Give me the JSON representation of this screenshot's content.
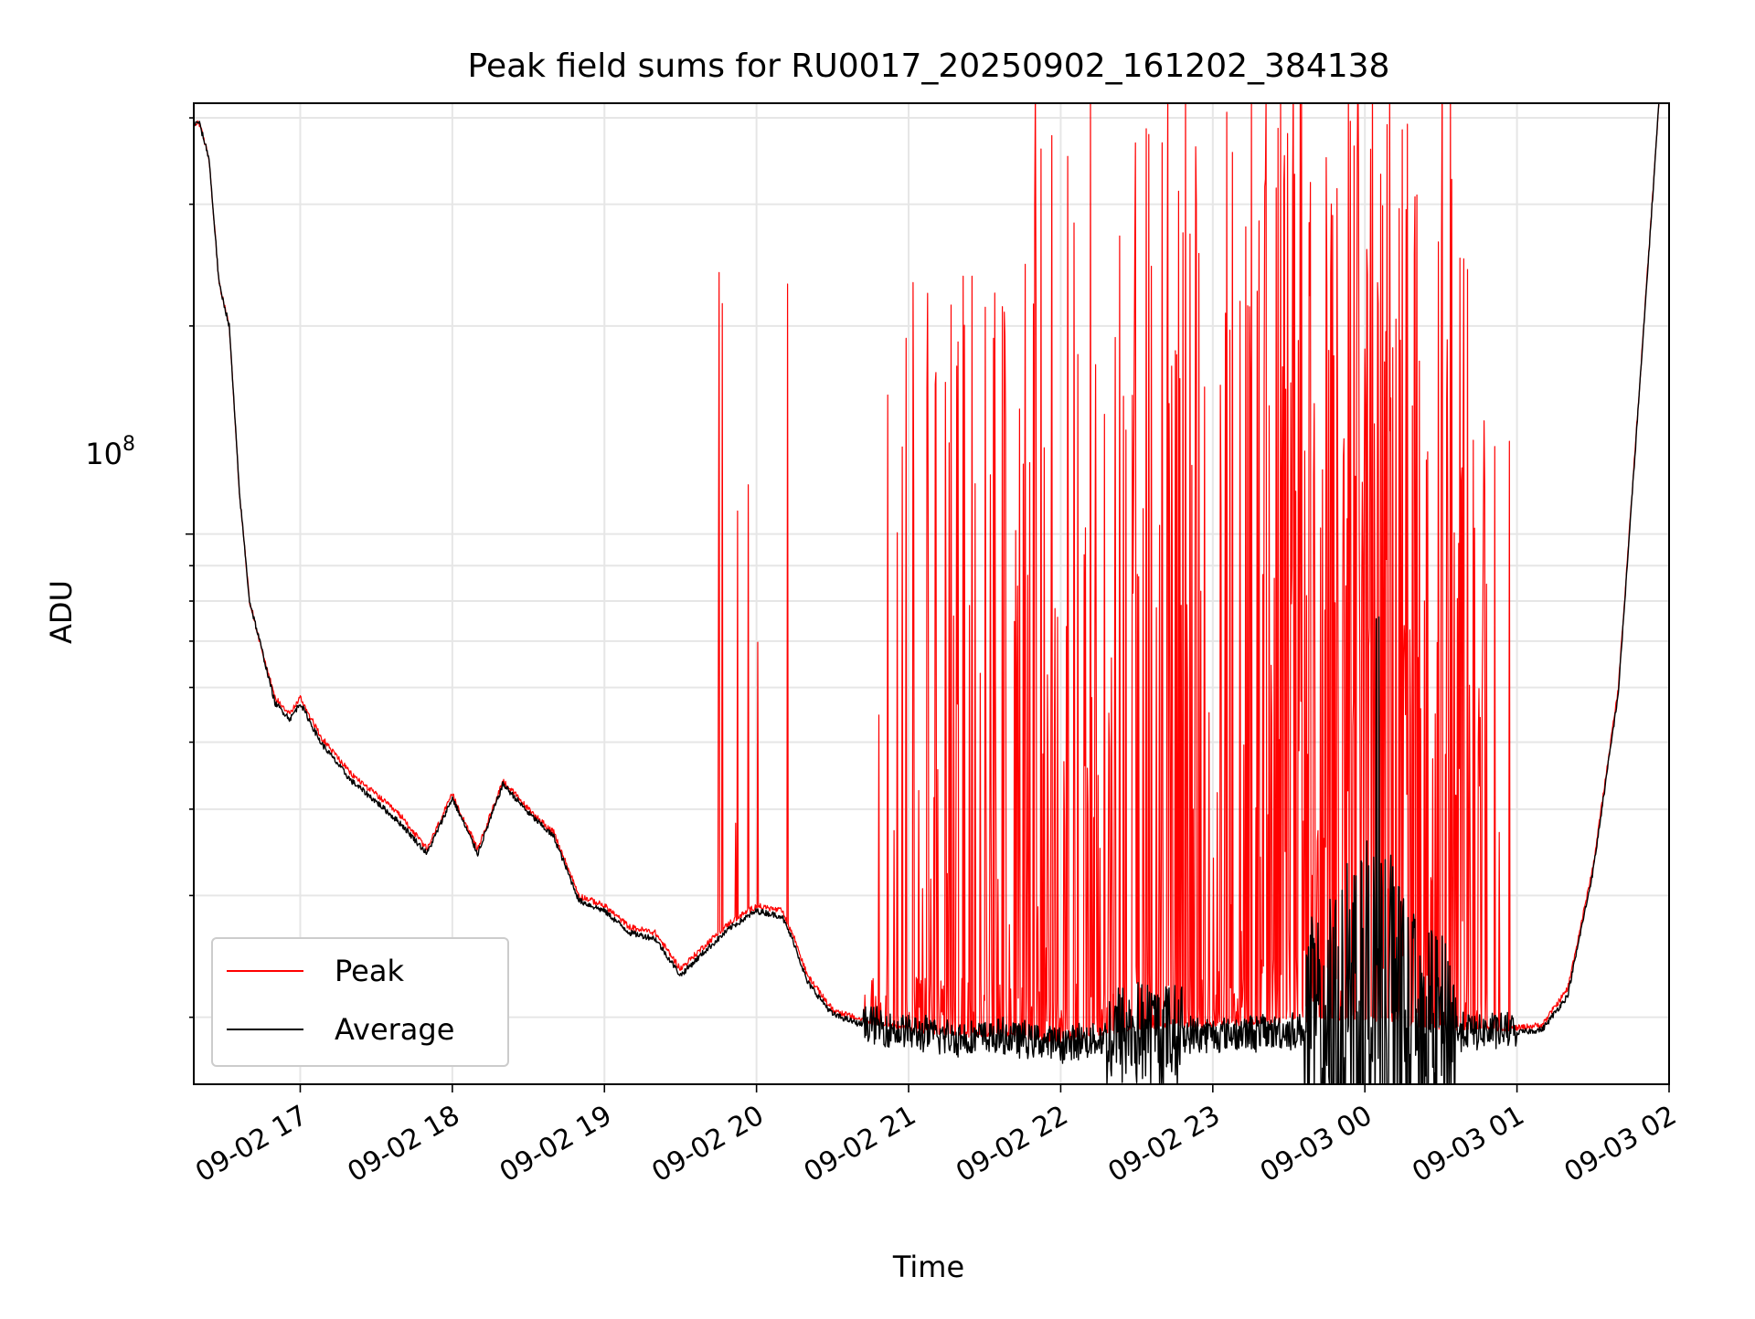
{
  "chart_data": {
    "type": "line",
    "title": "Peak field sums for RU0017_20250902_161202_384138",
    "xlabel": "Time",
    "ylabel": "ADU",
    "y_scale": "log",
    "y_tick_base": "10",
    "y_tick_exp": "8",
    "ylim": [
      16000000,
      420000000
    ],
    "xlim": [
      "09-02 16:18",
      "09-03 02:00"
    ],
    "x_ticks": [
      "09-02 17",
      "09-02 18",
      "09-02 19",
      "09-02 20",
      "09-02 21",
      "09-02 22",
      "09-02 23",
      "09-03 00",
      "09-03 01",
      "09-03 02"
    ],
    "grid": true,
    "legend_position": "lower-left",
    "series": [
      {
        "name": "Peak",
        "color": "#ff0000",
        "baseline": [
          [
            "09-02 16:18",
            390000000
          ],
          [
            "09-02 16:20",
            395000000
          ],
          [
            "09-02 16:24",
            350000000
          ],
          [
            "09-02 16:28",
            230000000
          ],
          [
            "09-02 16:32",
            200000000
          ],
          [
            "09-02 16:36",
            115000000
          ],
          [
            "09-02 16:40",
            80000000
          ],
          [
            "09-02 16:44",
            70000000
          ],
          [
            "09-02 16:50",
            58000000
          ],
          [
            "09-02 16:56",
            55000000
          ],
          [
            "09-02 17:00",
            58000000
          ],
          [
            "09-02 17:08",
            51000000
          ],
          [
            "09-02 17:20",
            45000000
          ],
          [
            "09-02 17:30",
            42000000
          ],
          [
            "09-02 17:40",
            39000000
          ],
          [
            "09-02 17:50",
            35000000
          ],
          [
            "09-02 18:00",
            42000000
          ],
          [
            "09-02 18:10",
            35000000
          ],
          [
            "09-02 18:20",
            44000000
          ],
          [
            "09-02 18:30",
            40000000
          ],
          [
            "09-02 18:40",
            37000000
          ],
          [
            "09-02 18:50",
            30000000
          ],
          [
            "09-02 19:00",
            29000000
          ],
          [
            "09-02 19:10",
            27000000
          ],
          [
            "09-02 19:20",
            26500000
          ],
          [
            "09-02 19:30",
            23500000
          ],
          [
            "09-02 19:40",
            25500000
          ],
          [
            "09-02 19:50",
            27500000
          ],
          [
            "09-02 20:00",
            29000000
          ],
          [
            "09-02 20:10",
            28500000
          ],
          [
            "09-02 20:15",
            26000000
          ],
          [
            "09-02 20:20",
            23000000
          ],
          [
            "09-02 20:30",
            20500000
          ],
          [
            "09-02 20:40",
            19900000
          ],
          [
            "09-02 21:00",
            19200000
          ],
          [
            "09-02 21:20",
            18900000
          ],
          [
            "09-02 21:40",
            18900000
          ],
          [
            "09-02 22:00",
            18500000
          ],
          [
            "09-02 22:30",
            19400000
          ],
          [
            "09-02 23:00",
            19500000
          ],
          [
            "09-02 23:30",
            19800000
          ],
          [
            "09-03 00:00",
            20000000
          ],
          [
            "09-03 00:20",
            19500000
          ],
          [
            "09-03 00:40",
            19300000
          ],
          [
            "09-03 01:00",
            19300000
          ],
          [
            "09-03 01:10",
            19500000
          ],
          [
            "09-03 01:20",
            22000000
          ],
          [
            "09-03 01:30",
            33000000
          ],
          [
            "09-03 01:40",
            60000000
          ],
          [
            "09-03 01:50",
            200000000
          ],
          [
            "09-03 01:56",
            420000000
          ]
        ]
      },
      {
        "name": "Average",
        "color": "#000000",
        "baseline": [
          [
            "09-02 16:18",
            390000000
          ],
          [
            "09-02 16:20",
            395000000
          ],
          [
            "09-02 16:24",
            350000000
          ],
          [
            "09-02 16:28",
            230000000
          ],
          [
            "09-02 16:32",
            200000000
          ],
          [
            "09-02 16:36",
            115000000
          ],
          [
            "09-02 16:40",
            80000000
          ],
          [
            "09-02 16:44",
            70000000
          ],
          [
            "09-02 16:50",
            57000000
          ],
          [
            "09-02 16:56",
            54000000
          ],
          [
            "09-02 17:00",
            57000000
          ],
          [
            "09-02 17:08",
            50000000
          ],
          [
            "09-02 17:20",
            44000000
          ],
          [
            "09-02 17:30",
            41000000
          ],
          [
            "09-02 17:40",
            38000000
          ],
          [
            "09-02 17:50",
            34500000
          ],
          [
            "09-02 18:00",
            41500000
          ],
          [
            "09-02 18:10",
            34500000
          ],
          [
            "09-02 18:20",
            43500000
          ],
          [
            "09-02 18:30",
            39500000
          ],
          [
            "09-02 18:40",
            36500000
          ],
          [
            "09-02 18:50",
            29500000
          ],
          [
            "09-02 19:00",
            28500000
          ],
          [
            "09-02 19:10",
            26500000
          ],
          [
            "09-02 19:20",
            26000000
          ],
          [
            "09-02 19:30",
            23000000
          ],
          [
            "09-02 19:40",
            25000000
          ],
          [
            "09-02 19:50",
            27000000
          ],
          [
            "09-02 20:00",
            28500000
          ],
          [
            "09-02 20:10",
            28000000
          ],
          [
            "09-02 20:15",
            25500000
          ],
          [
            "09-02 20:20",
            22500000
          ],
          [
            "09-02 20:30",
            20200000
          ],
          [
            "09-02 20:40",
            19600000
          ],
          [
            "09-02 21:00",
            18900000
          ],
          [
            "09-02 21:20",
            18600000
          ],
          [
            "09-02 21:40",
            18600000
          ],
          [
            "09-02 22:00",
            18200000
          ],
          [
            "09-02 22:30",
            18800000
          ],
          [
            "09-02 23:00",
            18800000
          ],
          [
            "09-02 23:30",
            19000000
          ],
          [
            "09-03 00:00",
            19200000
          ],
          [
            "09-03 00:20",
            19000000
          ],
          [
            "09-03 00:40",
            19000000
          ],
          [
            "09-03 01:00",
            19000000
          ],
          [
            "09-03 01:10",
            19200000
          ],
          [
            "09-03 01:20",
            21500000
          ],
          [
            "09-03 01:30",
            32500000
          ],
          [
            "09-03 01:40",
            59000000
          ],
          [
            "09-03 01:50",
            198000000
          ],
          [
            "09-03 01:56",
            420000000
          ]
        ]
      }
    ],
    "annotations": "Peak series shows dense spikes up to the top of the axis between ~20:50 and ~00:40; Average series shows a noisy bump up to ~4.5e7 around 00:00"
  }
}
